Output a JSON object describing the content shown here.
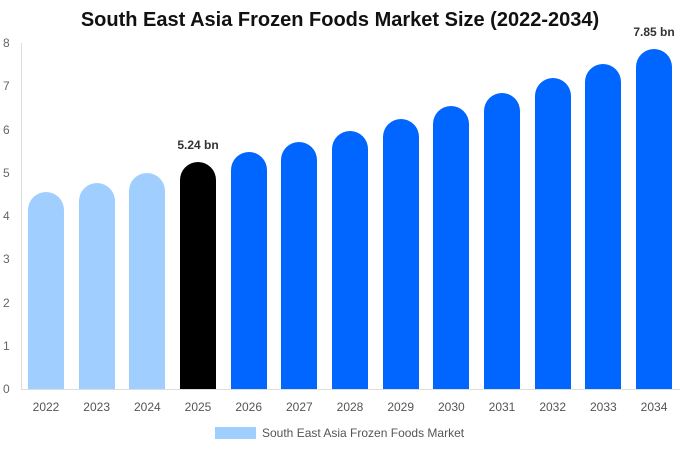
{
  "chart_data": {
    "type": "bar",
    "title": "South East Asia Frozen Foods Market Size (2022-2034)",
    "xlabel": "",
    "ylabel": "",
    "ylim": [
      0,
      8
    ],
    "yticks": [
      0,
      1,
      2,
      3,
      4,
      5,
      6,
      7,
      8
    ],
    "grid": false,
    "legend_position": "bottom",
    "categories": [
      "2022",
      "2023",
      "2024",
      "2025",
      "2026",
      "2027",
      "2028",
      "2029",
      "2030",
      "2031",
      "2032",
      "2033",
      "2034"
    ],
    "series": [
      {
        "name": "South East Asia Frozen Foods Market",
        "values": [
          4.55,
          4.77,
          4.99,
          5.24,
          5.47,
          5.71,
          5.96,
          6.24,
          6.54,
          6.84,
          7.18,
          7.51,
          7.85
        ]
      }
    ],
    "bar_colors": [
      "#a0cfff",
      "#a0cfff",
      "#a0cfff",
      "#000000",
      "#0066ff",
      "#0066ff",
      "#0066ff",
      "#0066ff",
      "#0066ff",
      "#0066ff",
      "#0066ff",
      "#0066ff",
      "#0066ff"
    ],
    "annotations": [
      {
        "category": "2025",
        "text": "5.24 bn"
      },
      {
        "category": "2034",
        "text": "7.85 bn"
      }
    ]
  },
  "legend": {
    "label": "South East Asia Frozen Foods Market",
    "color": "#a0cfff"
  }
}
